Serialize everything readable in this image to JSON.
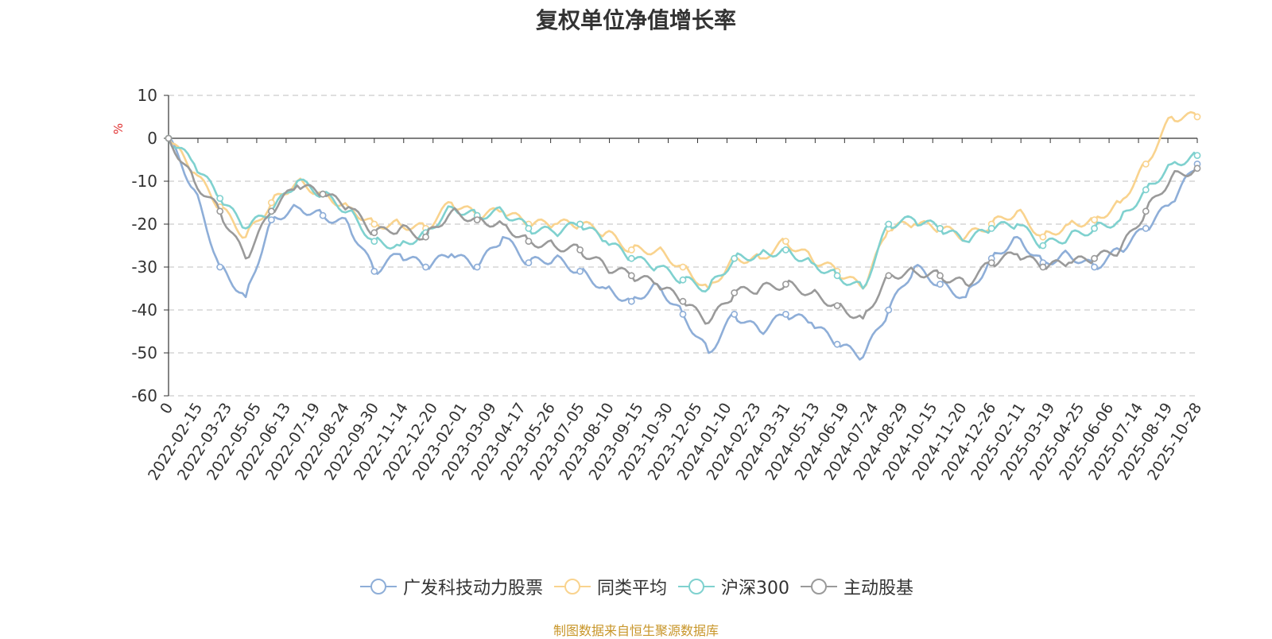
{
  "chart_data": {
    "type": "line",
    "title": "复权单位净值增长率",
    "ylabel": "%",
    "xlabel": "",
    "ylim": [
      -60,
      10
    ],
    "yticks": [
      10,
      0,
      -10,
      -20,
      -30,
      -40,
      -50,
      -60
    ],
    "x_tick_labels": [
      "0",
      "2022-02-15",
      "2022-03-23",
      "2022-05-05",
      "2022-06-13",
      "2022-07-19",
      "2022-08-24",
      "2022-09-30",
      "2022-11-14",
      "2022-12-20",
      "2023-02-01",
      "2023-03-09",
      "2023-04-17",
      "2023-05-26",
      "2023-07-05",
      "2023-08-10",
      "2023-09-15",
      "2023-10-30",
      "2023-12-05",
      "2024-01-10",
      "2024-02-23",
      "2024-03-31",
      "2024-05-13",
      "2024-06-19",
      "2024-07-24",
      "2024-08-29",
      "2024-10-15",
      "2024-11-20",
      "2024-12-26",
      "2025-02-11",
      "2025-03-19",
      "2025-04-25",
      "2025-06-06",
      "2025-07-14",
      "2025-08-19",
      "2025-10-28"
    ],
    "grid": true,
    "legend_position": "bottom-center",
    "series": [
      {
        "name": "广发科技动力股票",
        "color": "#8eaed8",
        "values": [
          0,
          -12,
          -30,
          -37,
          -19,
          -16,
          -18,
          -20,
          -31,
          -27,
          -30,
          -27,
          -30,
          -23,
          -29,
          -28,
          -31,
          -35,
          -38,
          -34,
          -41,
          -50,
          -41,
          -45,
          -41,
          -43,
          -48,
          -51,
          -40,
          -30,
          -34,
          -37,
          -28,
          -23,
          -29,
          -27,
          -30,
          -26,
          -21,
          -15,
          -6
        ]
      },
      {
        "name": "同类平均",
        "color": "#f9d38e",
        "values": [
          0,
          -8,
          -16,
          -23,
          -15,
          -10,
          -13,
          -16,
          -20,
          -20,
          -21,
          -15,
          -18,
          -17,
          -20,
          -20,
          -20,
          -22,
          -26,
          -26,
          -30,
          -35,
          -28,
          -28,
          -24,
          -28,
          -31,
          -35,
          -21,
          -20,
          -21,
          -23,
          -20,
          -17,
          -23,
          -20,
          -19,
          -15,
          -6,
          5,
          5
        ]
      },
      {
        "name": "沪深300",
        "color": "#7fd1cf",
        "values": [
          0,
          -6,
          -14,
          -21,
          -17,
          -10,
          -13,
          -17,
          -24,
          -25,
          -22,
          -16,
          -18,
          -17,
          -21,
          -22,
          -20,
          -24,
          -28,
          -30,
          -33,
          -35,
          -28,
          -27,
          -26,
          -29,
          -32,
          -35,
          -20,
          -19,
          -21,
          -24,
          -21,
          -20,
          -25,
          -23,
          -21,
          -19,
          -12,
          -6,
          -4
        ]
      },
      {
        "name": "主动股基",
        "color": "#9a9a9a",
        "values": [
          0,
          -10,
          -17,
          -28,
          -17,
          -11,
          -13,
          -16,
          -22,
          -21,
          -23,
          -17,
          -19,
          -20,
          -24,
          -25,
          -26,
          -30,
          -32,
          -34,
          -38,
          -43,
          -36,
          -35,
          -34,
          -36,
          -39,
          -42,
          -32,
          -31,
          -32,
          -34,
          -29,
          -27,
          -30,
          -29,
          -28,
          -26,
          -17,
          -9,
          -7
        ]
      }
    ]
  },
  "legend": [
    {
      "label": "广发科技动力股票",
      "color": "#8eaed8"
    },
    {
      "label": "同类平均",
      "color": "#f9d38e"
    },
    {
      "label": "沪深300",
      "color": "#7fd1cf"
    },
    {
      "label": "主动股基",
      "color": "#9a9a9a"
    }
  ],
  "footer": {
    "source_text": "制图数据来自恒生聚源数据库"
  }
}
